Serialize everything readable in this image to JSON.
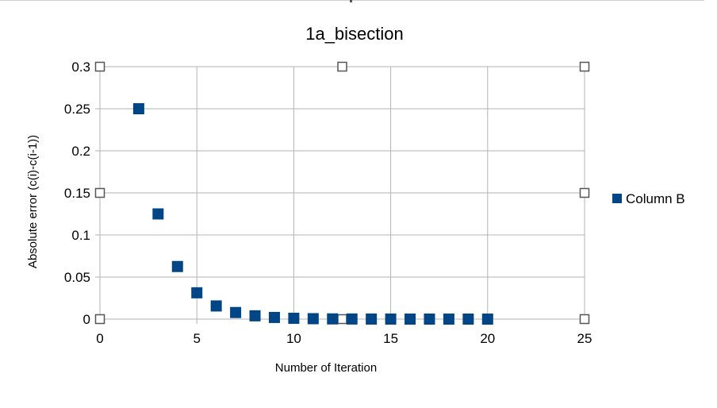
{
  "chart_data": {
    "type": "scatter",
    "title": "1a_bisection",
    "xlabel": "Number of Iteration",
    "ylabel": "Absolute error (c(i)-c(i-1))",
    "xlim": [
      0,
      25
    ],
    "ylim": [
      0,
      0.3
    ],
    "x_ticks": [
      0,
      5,
      10,
      15,
      20,
      25
    ],
    "y_ticks": [
      0,
      0.05,
      0.1,
      0.15,
      0.2,
      0.25,
      0.3
    ],
    "x_tick_labels": [
      "0",
      "5",
      "10",
      "15",
      "20",
      "25"
    ],
    "y_tick_labels": [
      "0",
      "0.05",
      "0.1",
      "0.15",
      "0.2",
      "0.25",
      "0.3"
    ],
    "grid": true,
    "legend_position": "right",
    "series": [
      {
        "name": "Column B",
        "color": "#004586",
        "x": [
          2,
          3,
          4,
          5,
          6,
          7,
          8,
          9,
          10,
          11,
          12,
          13,
          14,
          15,
          16,
          17,
          18,
          19,
          20
        ],
        "y": [
          0.25,
          0.125,
          0.0625,
          0.03125,
          0.015625,
          0.0078125,
          0.00390625,
          0.001953125,
          0.0009765625,
          0.00048828125,
          0.000244140625,
          0.0001220703125,
          6.103515625e-05,
          3.0517578125e-05,
          1.52587890625e-05,
          7.62939453125e-06,
          3.814697265625e-06,
          1.9073486328125e-06,
          9.5367431640625e-07
        ]
      }
    ]
  }
}
